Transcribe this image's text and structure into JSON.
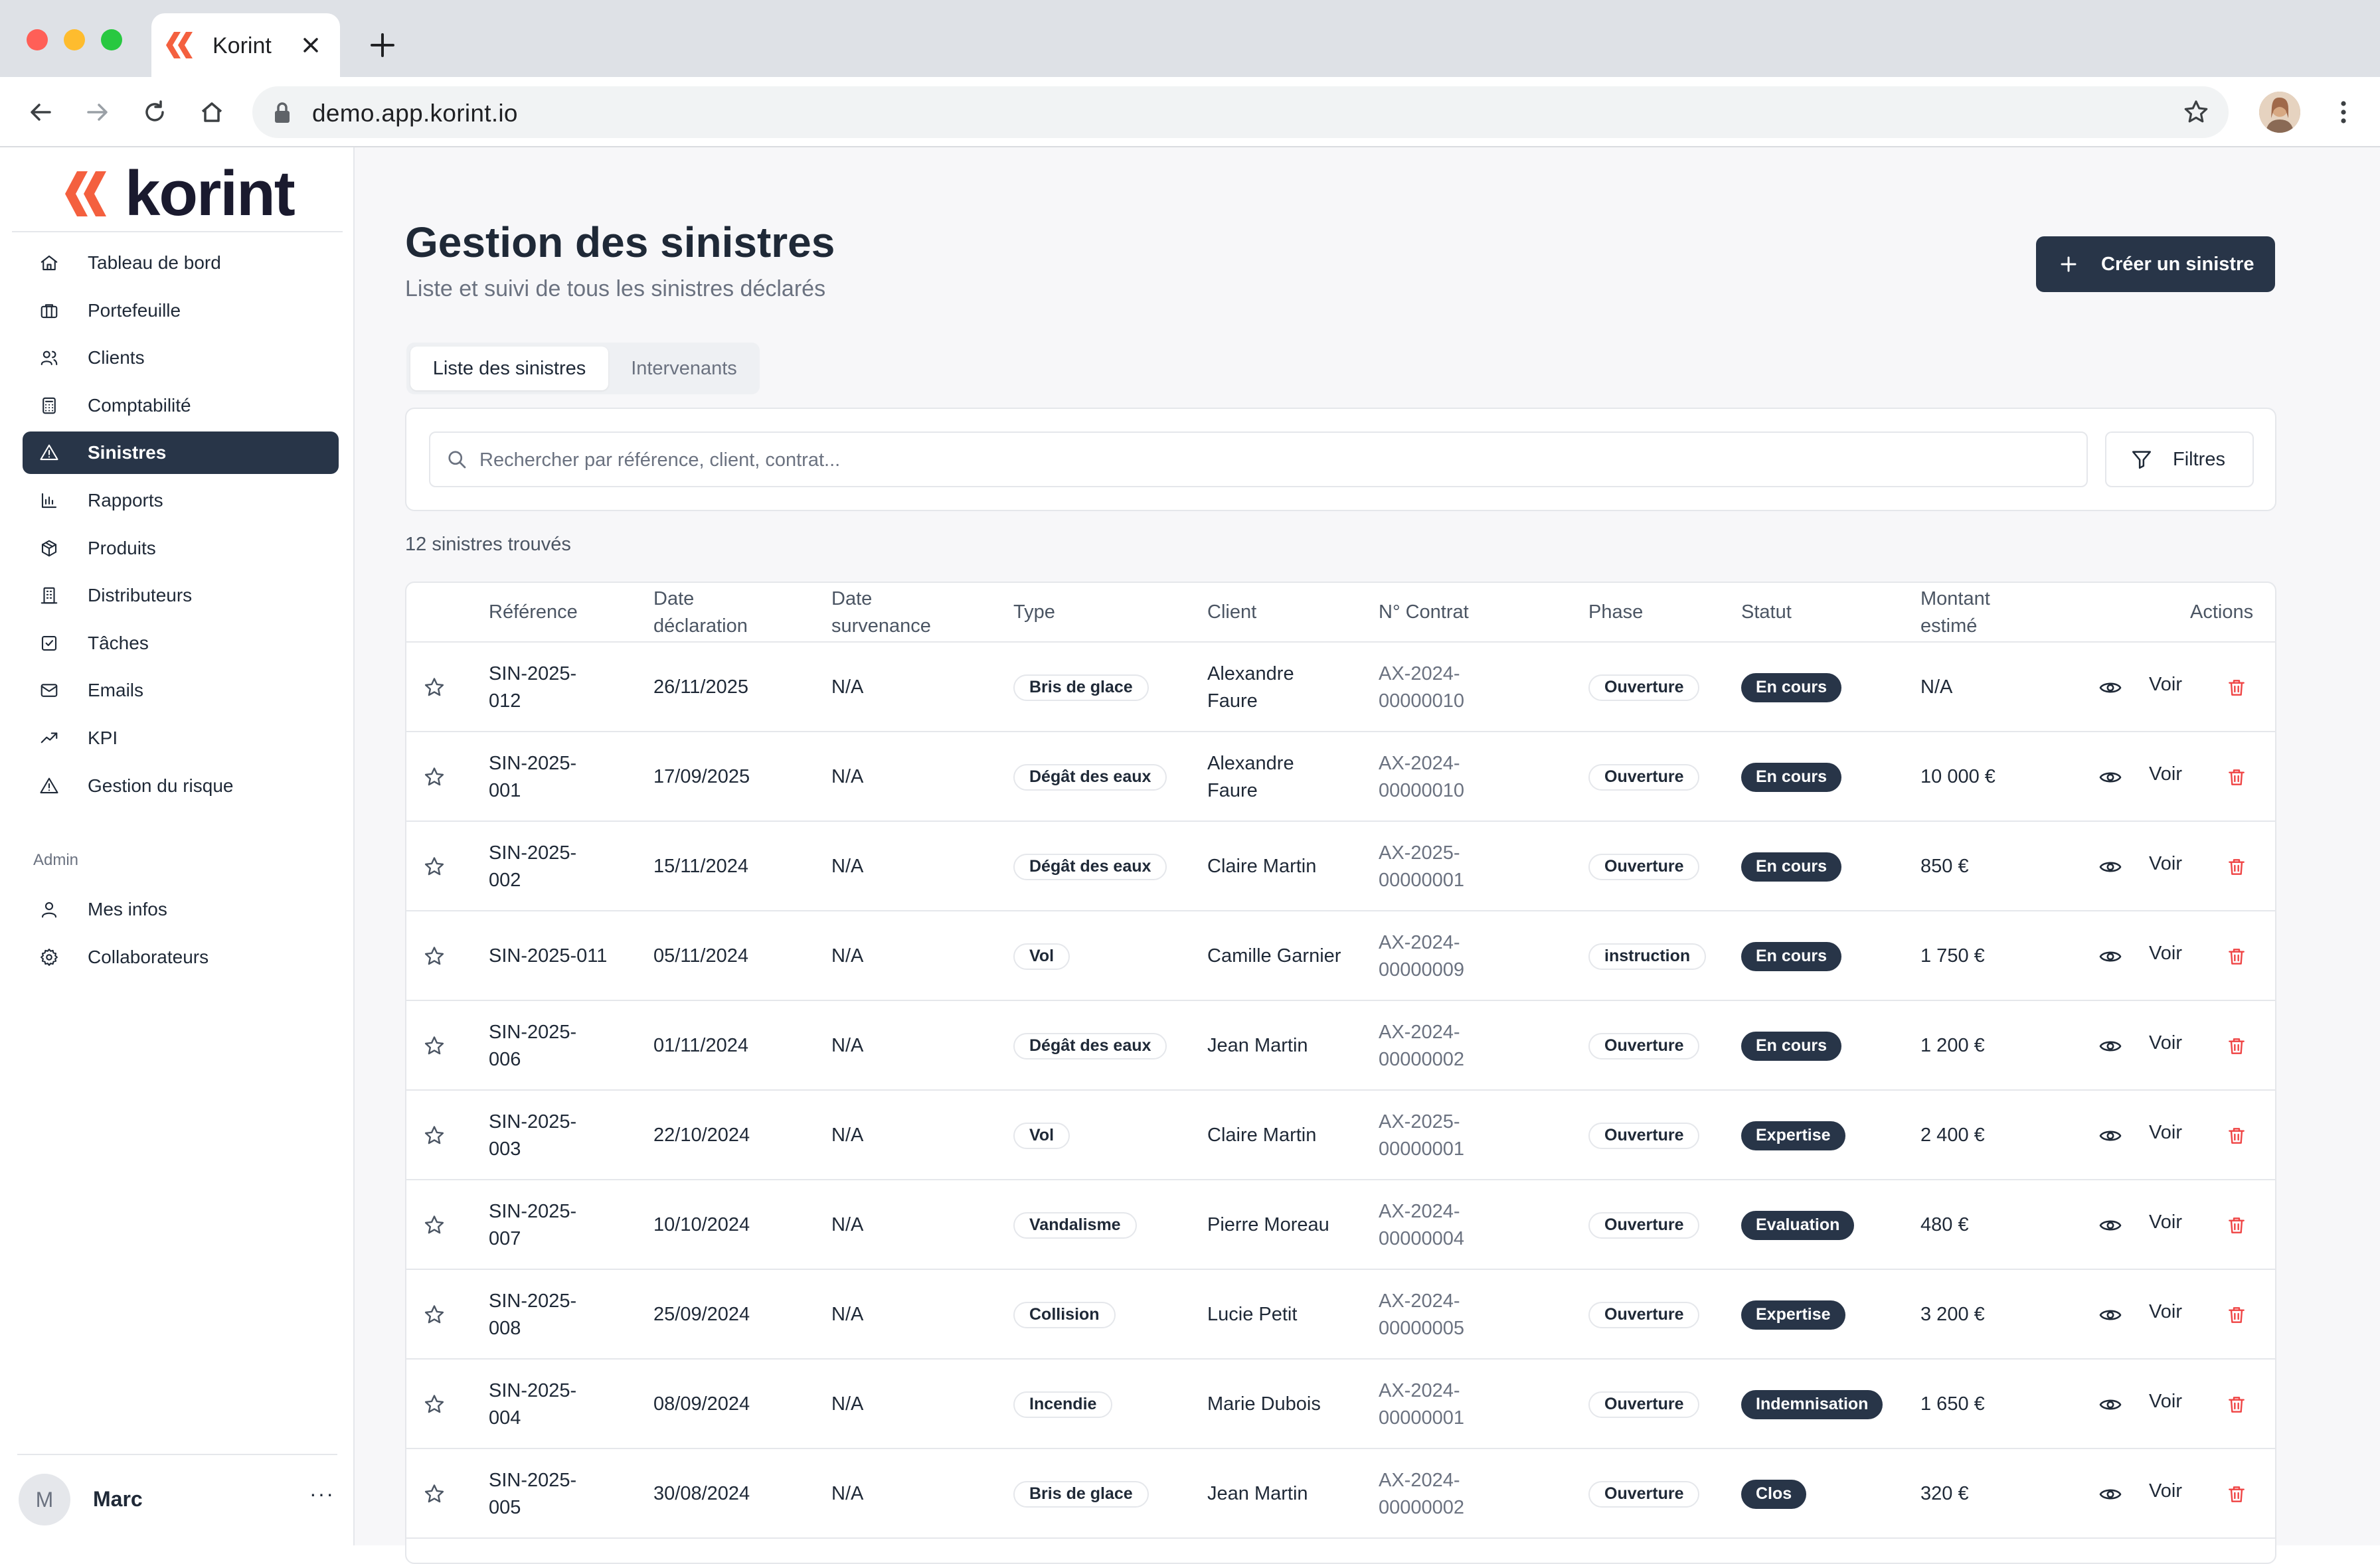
{
  "browser": {
    "tab_title": "Korint",
    "url": "demo.app.korint.io"
  },
  "brand": {
    "name": "korint",
    "accent": "#f4603f",
    "dark": "#283548"
  },
  "sidebar": {
    "items": [
      {
        "label": "Tableau de bord",
        "icon": "home-icon"
      },
      {
        "label": "Portefeuille",
        "icon": "briefcase-icon"
      },
      {
        "label": "Clients",
        "icon": "users-icon"
      },
      {
        "label": "Comptabilité",
        "icon": "calculator-icon"
      },
      {
        "label": "Sinistres",
        "icon": "alert-triangle-icon",
        "active": true
      },
      {
        "label": "Rapports",
        "icon": "bar-chart-icon"
      },
      {
        "label": "Produits",
        "icon": "package-icon"
      },
      {
        "label": "Distributeurs",
        "icon": "building-icon"
      },
      {
        "label": "Tâches",
        "icon": "checkbox-icon"
      },
      {
        "label": "Emails",
        "icon": "mail-icon"
      },
      {
        "label": "KPI",
        "icon": "trend-icon"
      },
      {
        "label": "Gestion du risque",
        "icon": "warning-icon"
      }
    ],
    "admin_label": "Admin",
    "admin_items": [
      {
        "label": "Mes infos",
        "icon": "user-icon"
      },
      {
        "label": "Collaborateurs",
        "icon": "gear-icon"
      }
    ],
    "user": {
      "initial": "M",
      "name": "Marc",
      "more": "···"
    }
  },
  "page": {
    "title": "Gestion des sinistres",
    "subtitle": "Liste et suivi de tous les sinistres déclarés",
    "create_button": "Créer un sinistre",
    "tabs": [
      "Liste des sinistres",
      "Intervenants"
    ],
    "search_placeholder": "Rechercher par référence, client, contrat...",
    "filters_label": "Filtres",
    "count_text": "12 sinistres trouvés"
  },
  "table": {
    "headers": {
      "reference": "Référence",
      "date_declaration": [
        "Date",
        "déclaration"
      ],
      "date_survenance": [
        "Date",
        "survenance"
      ],
      "type": "Type",
      "client": "Client",
      "contrat": "N° Contrat",
      "phase": "Phase",
      "statut": "Statut",
      "montant": [
        "Montant",
        "estimé"
      ],
      "actions": "Actions"
    },
    "view_label": "Voir",
    "rows": [
      {
        "ref": [
          "SIN-2025-",
          "012"
        ],
        "date_decl": "26/11/2025",
        "date_surv": "N/A",
        "type": "Bris de glace",
        "client": [
          "Alexandre",
          "Faure"
        ],
        "contrat": [
          "AX-2024-",
          "00000010"
        ],
        "phase": "Ouverture",
        "statut": "En cours",
        "montant": "N/A"
      },
      {
        "ref": [
          "SIN-2025-",
          "001"
        ],
        "date_decl": "17/09/2025",
        "date_surv": "N/A",
        "type": "Dégât des eaux",
        "client": [
          "Alexandre",
          "Faure"
        ],
        "contrat": [
          "AX-2024-",
          "00000010"
        ],
        "phase": "Ouverture",
        "statut": "En cours",
        "montant": "10 000 €"
      },
      {
        "ref": [
          "SIN-2025-",
          "002"
        ],
        "date_decl": "15/11/2024",
        "date_surv": "N/A",
        "type": "Dégât des eaux",
        "client": [
          "Claire Martin"
        ],
        "contrat": [
          "AX-2025-",
          "00000001"
        ],
        "phase": "Ouverture",
        "statut": "En cours",
        "montant": "850 €"
      },
      {
        "ref": [
          "SIN-2025-011"
        ],
        "date_decl": "05/11/2024",
        "date_surv": "N/A",
        "type": "Vol",
        "client": [
          "Camille Garnier"
        ],
        "contrat": [
          "AX-2024-",
          "00000009"
        ],
        "phase": "instruction",
        "statut": "En cours",
        "montant": "1 750 €"
      },
      {
        "ref": [
          "SIN-2025-",
          "006"
        ],
        "date_decl": "01/11/2024",
        "date_surv": "N/A",
        "type": "Dégât des eaux",
        "client": [
          "Jean Martin"
        ],
        "contrat": [
          "AX-2024-",
          "00000002"
        ],
        "phase": "Ouverture",
        "statut": "En cours",
        "montant": "1 200 €"
      },
      {
        "ref": [
          "SIN-2025-",
          "003"
        ],
        "date_decl": "22/10/2024",
        "date_surv": "N/A",
        "type": "Vol",
        "client": [
          "Claire Martin"
        ],
        "contrat": [
          "AX-2025-",
          "00000001"
        ],
        "phase": "Ouverture",
        "statut": "Expertise",
        "montant": "2 400 €"
      },
      {
        "ref": [
          "SIN-2025-",
          "007"
        ],
        "date_decl": "10/10/2024",
        "date_surv": "N/A",
        "type": "Vandalisme",
        "client": [
          "Pierre Moreau"
        ],
        "contrat": [
          "AX-2024-",
          "00000004"
        ],
        "phase": "Ouverture",
        "statut": "Evaluation",
        "montant": "480 €"
      },
      {
        "ref": [
          "SIN-2025-",
          "008"
        ],
        "date_decl": "25/09/2024",
        "date_surv": "N/A",
        "type": "Collision",
        "client": [
          "Lucie Petit"
        ],
        "contrat": [
          "AX-2024-",
          "00000005"
        ],
        "phase": "Ouverture",
        "statut": "Expertise",
        "montant": "3 200 €"
      },
      {
        "ref": [
          "SIN-2025-",
          "004"
        ],
        "date_decl": "08/09/2024",
        "date_surv": "N/A",
        "type": "Incendie",
        "client": [
          "Marie Dubois"
        ],
        "contrat": [
          "AX-2024-",
          "00000001"
        ],
        "phase": "Ouverture",
        "statut": "Indemnisation",
        "montant": "1 650 €"
      },
      {
        "ref": [
          "SIN-2025-",
          "005"
        ],
        "date_decl": "30/08/2024",
        "date_surv": "N/A",
        "type": "Bris de glace",
        "client": [
          "Jean Martin"
        ],
        "contrat": [
          "AX-2024-",
          "00000002"
        ],
        "phase": "Ouverture",
        "statut": "Clos",
        "montant": "320 €"
      }
    ]
  }
}
